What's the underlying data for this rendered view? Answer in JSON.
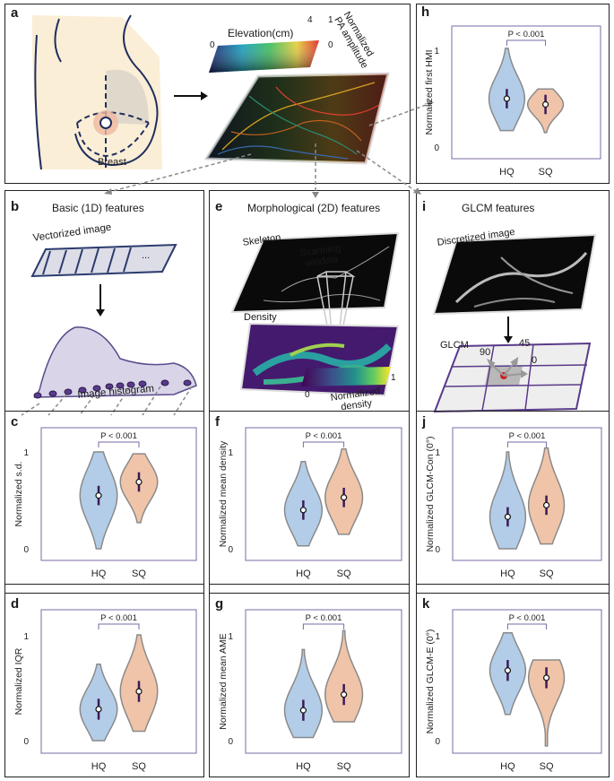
{
  "panel_a": {
    "label": "a",
    "breast_label": "Breast",
    "colorbar_title": "Elevation(cm)",
    "cb_min": "0",
    "cb_max": "4",
    "amp_title_1": "Normalized",
    "amp_title_2": "PA amplitude",
    "amp_min": "0",
    "amp_max": "1"
  },
  "panel_b": {
    "label": "b",
    "title": "Basic (1D) features",
    "vectorized": "Vectorized image",
    "ellipsis": "...",
    "histogram": "Image histogram"
  },
  "panel_e": {
    "label": "e",
    "title": "Morphological (2D) features",
    "skeleton": "Skeleton",
    "scanning_1": "Scanning",
    "scanning_2": "window",
    "density": "Density",
    "cb_min": "0",
    "cb_max": "1",
    "cb_title_1": "Normalized",
    "cb_title_2": "density"
  },
  "panel_i": {
    "label": "i",
    "title": "GLCM features",
    "discretized": "Discretized image",
    "glcm": "GLCM",
    "a90": "90",
    "a45": "45",
    "a0": "0"
  },
  "chart_data": [
    {
      "id": "h",
      "label": "h",
      "type": "violin",
      "ylabel": "Normalized first HMI",
      "categories": [
        "HQ",
        "SQ"
      ],
      "ylim": [
        0,
        1
      ],
      "yticks": [
        "0",
        "1"
      ],
      "significance": "P < 0.001",
      "medians": [
        0.5,
        0.44
      ],
      "ranges": [
        [
          0.17,
          1.02
        ],
        [
          0.15,
          0.6
        ]
      ],
      "colors": [
        "#b3cde8",
        "#f0c4a8"
      ]
    },
    {
      "id": "c",
      "label": "c",
      "type": "violin",
      "ylabel": "Normalized s.d.",
      "categories": [
        "HQ",
        "SQ"
      ],
      "ylim": [
        0,
        1
      ],
      "yticks": [
        "0",
        "1"
      ],
      "significance": "P < 0.001",
      "medians": [
        0.55,
        0.69
      ],
      "ranges": [
        [
          0.0,
          1.0
        ],
        [
          0.27,
          0.98
        ]
      ],
      "colors": [
        "#b3cde8",
        "#f0c4a8"
      ]
    },
    {
      "id": "d",
      "label": "d",
      "type": "violin",
      "ylabel": "Normalized IQR",
      "categories": [
        "HQ",
        "SQ"
      ],
      "ylim": [
        0,
        1
      ],
      "yticks": [
        "0",
        "1"
      ],
      "significance": "P < 0.001",
      "medians": [
        0.3,
        0.47
      ],
      "ranges": [
        [
          0.0,
          0.73
        ],
        [
          0.09,
          1.01
        ]
      ],
      "colors": [
        "#b3cde8",
        "#f0c4a8"
      ]
    },
    {
      "id": "f",
      "label": "f",
      "type": "violin",
      "ylabel": "Normalized mean density",
      "categories": [
        "HQ",
        "SQ"
      ],
      "ylim": [
        0,
        1
      ],
      "yticks": [
        "0",
        "1"
      ],
      "significance": "P < 0.001",
      "medians": [
        0.4,
        0.53
      ],
      "ranges": [
        [
          0.03,
          0.9
        ],
        [
          0.15,
          1.03
        ]
      ],
      "colors": [
        "#b3cde8",
        "#f0c4a8"
      ]
    },
    {
      "id": "g",
      "label": "g",
      "type": "violin",
      "ylabel": "Normalized mean AME",
      "categories": [
        "HQ",
        "SQ"
      ],
      "ylim": [
        0,
        1
      ],
      "yticks": [
        "0",
        "1"
      ],
      "significance": "P < 0.001",
      "medians": [
        0.29,
        0.44
      ],
      "ranges": [
        [
          0.03,
          0.87
        ],
        [
          0.18,
          1.05
        ]
      ],
      "colors": [
        "#b3cde8",
        "#f0c4a8"
      ]
    },
    {
      "id": "j",
      "label": "j",
      "type": "violin",
      "ylabel": "Normalized GLCM-Con (0°)",
      "categories": [
        "HQ",
        "SQ"
      ],
      "ylim": [
        0,
        1
      ],
      "yticks": [
        "0",
        "1"
      ],
      "significance": "P < 0.001",
      "medians": [
        0.33,
        0.45
      ],
      "ranges": [
        [
          0.0,
          1.0
        ],
        [
          0.05,
          1.04
        ]
      ],
      "colors": [
        "#b3cde8",
        "#f0c4a8"
      ]
    },
    {
      "id": "k",
      "label": "k",
      "type": "violin",
      "ylabel": "Normalized GLCM-E (0°)",
      "categories": [
        "HQ",
        "SQ"
      ],
      "ylim": [
        0,
        1
      ],
      "yticks": [
        "0",
        "1"
      ],
      "significance": "P < 0.001",
      "medians": [
        0.67,
        0.6
      ],
      "ranges": [
        [
          0.25,
          1.03
        ],
        [
          -0.05,
          0.77
        ]
      ],
      "colors": [
        "#b3cde8",
        "#f0c4a8"
      ]
    }
  ]
}
